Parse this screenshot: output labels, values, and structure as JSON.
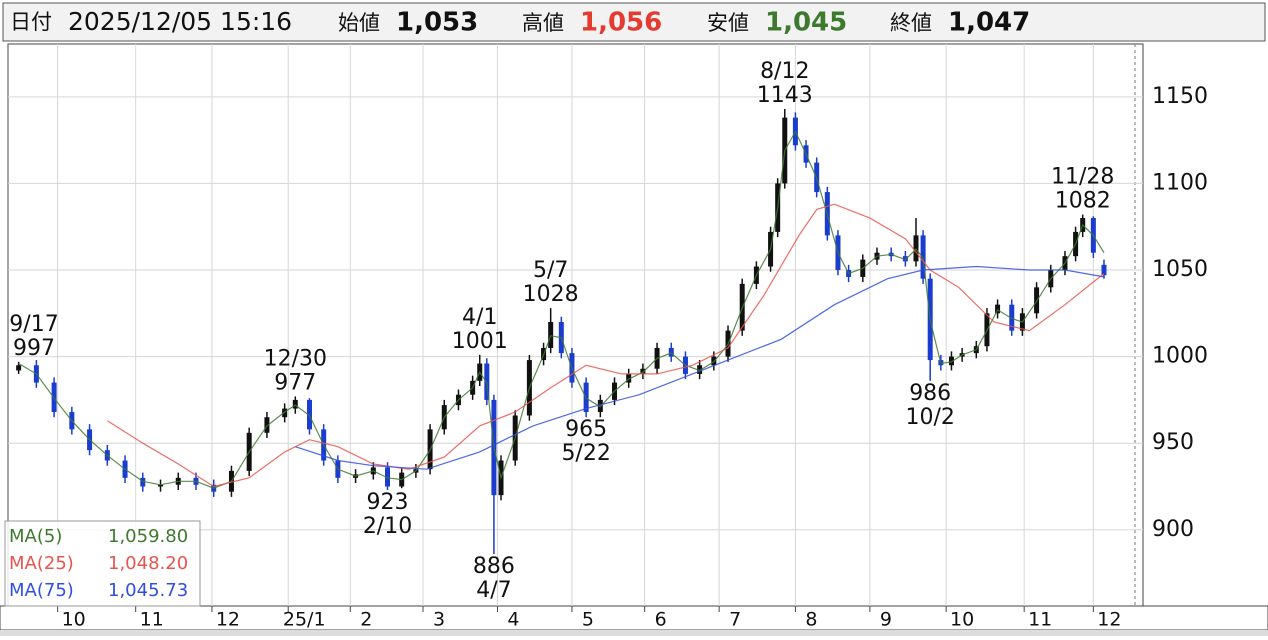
{
  "header": {
    "date_label": "日付",
    "datetime": "2025/12/05 15:16",
    "open_label": "始値",
    "open": {
      "value": 1053,
      "label": "1,053"
    },
    "high_label": "高値",
    "high": {
      "value": 1056,
      "label": "1,056"
    },
    "low_label": "安値",
    "low": {
      "value": 1045,
      "label": "1,045"
    },
    "close_label": "終値",
    "close": {
      "value": 1047,
      "label": "1,047"
    }
  },
  "chart_data": {
    "type": "candlestick",
    "up_color": "#111111",
    "down_color": "#1a3ccf",
    "grid": true,
    "xlim": [
      -3,
      317
    ],
    "ylim": [
      856,
      1180.5
    ],
    "yticks": [
      900,
      950,
      1000,
      1050,
      1100,
      1150
    ],
    "xticks": [
      {
        "value": 11,
        "label": "10"
      },
      {
        "value": 33,
        "label": "11"
      },
      {
        "value": 54.5,
        "label": "12"
      },
      {
        "value": 76,
        "label": "25/1"
      },
      {
        "value": 93.5,
        "label": "2"
      },
      {
        "value": 114,
        "label": "3"
      },
      {
        "value": 135,
        "label": "4"
      },
      {
        "value": 156,
        "label": "5"
      },
      {
        "value": 176.5,
        "label": "6"
      },
      {
        "value": 197.5,
        "label": "7"
      },
      {
        "value": 219,
        "label": "8"
      },
      {
        "value": 240,
        "label": "9"
      },
      {
        "value": 261.5,
        "label": "10"
      },
      {
        "value": 283.5,
        "label": "11"
      },
      {
        "value": 303,
        "label": "12"
      }
    ],
    "x": [
      0,
      5,
      10,
      15,
      20,
      25,
      30,
      35,
      40,
      45,
      50,
      55,
      60,
      65,
      70,
      75,
      78,
      82,
      86,
      90,
      95,
      100,
      104,
      108,
      112,
      116,
      120,
      124,
      128,
      130,
      132,
      134,
      136,
      140,
      144,
      148,
      150,
      153,
      156,
      160,
      164,
      168,
      172,
      176,
      180,
      184,
      188,
      192,
      196,
      200,
      204,
      208,
      212,
      214,
      216,
      219,
      222,
      225,
      228,
      231,
      234,
      238,
      242,
      246,
      250,
      253,
      255,
      257,
      260,
      263,
      266,
      270,
      273,
      276,
      280,
      283,
      287,
      291,
      295,
      298,
      300,
      303,
      306
    ],
    "open": [
      992,
      995,
      985,
      968,
      958,
      946,
      940,
      930,
      925,
      926,
      930,
      926,
      922,
      934,
      956,
      965,
      970,
      975,
      958,
      940,
      930,
      932,
      936,
      925,
      933,
      935,
      958,
      972,
      978,
      986,
      996,
      975,
      920,
      940,
      966,
      998,
      1005,
      1020,
      1002,
      985,
      968,
      975,
      985,
      990,
      993,
      1005,
      1000,
      990,
      995,
      1000,
      1015,
      1042,
      1052,
      1072,
      1100,
      1138,
      1122,
      1112,
      1095,
      1070,
      1050,
      1046,
      1056,
      1060,
      1058,
      1055,
      1070,
      1045,
      998,
      995,
      1000,
      1002,
      1006,
      1025,
      1030,
      1015,
      1025,
      1040,
      1050,
      1058,
      1072,
      1080,
      1053
    ],
    "high": [
      997,
      998,
      988,
      971,
      961,
      949,
      943,
      933,
      929,
      933,
      933,
      929,
      937,
      959,
      968,
      973,
      977,
      976,
      961,
      943,
      935,
      939,
      939,
      936,
      938,
      961,
      975,
      981,
      989,
      1001,
      999,
      978,
      943,
      969,
      1001,
      1008,
      1028,
      1023,
      1005,
      988,
      978,
      988,
      993,
      996,
      1008,
      1008,
      1003,
      998,
      1003,
      1018,
      1045,
      1055,
      1075,
      1103,
      1143,
      1141,
      1125,
      1115,
      1098,
      1073,
      1053,
      1059,
      1063,
      1063,
      1061,
      1080,
      1073,
      1048,
      1001,
      1003,
      1005,
      1009,
      1028,
      1033,
      1033,
      1028,
      1043,
      1053,
      1061,
      1075,
      1082,
      1081,
      1056
    ],
    "low": [
      990,
      982,
      965,
      955,
      943,
      937,
      927,
      922,
      922,
      923,
      923,
      919,
      919,
      931,
      953,
      962,
      967,
      955,
      937,
      927,
      927,
      929,
      923,
      924,
      930,
      932,
      955,
      969,
      975,
      983,
      972,
      886,
      917,
      937,
      963,
      995,
      1002,
      999,
      982,
      965,
      965,
      972,
      982,
      987,
      990,
      997,
      987,
      987,
      992,
      997,
      1012,
      1039,
      1049,
      1069,
      1097,
      1119,
      1109,
      1092,
      1067,
      1047,
      1043,
      1043,
      1053,
      1055,
      1052,
      1052,
      1042,
      986,
      992,
      992,
      997,
      999,
      1003,
      1022,
      1012,
      1012,
      1022,
      1037,
      1047,
      1055,
      1069,
      1057,
      1045
    ],
    "close": [
      995,
      985,
      968,
      958,
      946,
      940,
      930,
      925,
      926,
      930,
      926,
      922,
      934,
      956,
      965,
      970,
      975,
      958,
      940,
      930,
      932,
      936,
      925,
      933,
      935,
      958,
      972,
      978,
      986,
      996,
      975,
      920,
      940,
      966,
      998,
      1005,
      1020,
      1002,
      985,
      968,
      975,
      985,
      990,
      993,
      1005,
      1000,
      990,
      995,
      1000,
      1015,
      1042,
      1052,
      1072,
      1100,
      1138,
      1122,
      1112,
      1095,
      1070,
      1050,
      1046,
      1056,
      1060,
      1058,
      1055,
      1070,
      1045,
      998,
      995,
      1000,
      1002,
      1006,
      1025,
      1030,
      1015,
      1025,
      1040,
      1050,
      1058,
      1072,
      1080,
      1060,
      1047
    ],
    "series": [
      {
        "name": "MA(5)",
        "color": "#3d7a2e",
        "legend_value": {
          "value": 1059.8,
          "label": "1,059.80"
        },
        "x": [
          0,
          5,
          10,
          15,
          20,
          25,
          30,
          35,
          40,
          45,
          50,
          55,
          60,
          65,
          70,
          75,
          78,
          82,
          86,
          90,
          95,
          100,
          104,
          108,
          112,
          116,
          120,
          124,
          128,
          130,
          132,
          134,
          136,
          140,
          144,
          148,
          150,
          153,
          156,
          160,
          164,
          168,
          172,
          176,
          180,
          184,
          188,
          192,
          196,
          200,
          204,
          208,
          212,
          214,
          216,
          219,
          222,
          225,
          228,
          231,
          234,
          238,
          242,
          246,
          250,
          253,
          255,
          257,
          260,
          263,
          266,
          270,
          273,
          276,
          280,
          283,
          287,
          291,
          295,
          298,
          300,
          303,
          306
        ],
        "values": [
          996,
          990,
          976,
          963,
          952,
          943,
          935,
          928,
          926,
          928,
          928,
          924,
          928,
          945,
          960,
          968,
          972,
          966,
          949,
          935,
          931,
          934,
          930,
          929,
          934,
          946,
          965,
          975,
          982,
          991,
          985,
          948,
          930,
          953,
          982,
          1001,
          1012,
          1011,
          993,
          976,
          971,
          980,
          987,
          991,
          999,
          1002,
          995,
          992,
          997,
          1007,
          1028,
          1047,
          1062,
          1086,
          1119,
          1130,
          1117,
          1103,
          1082,
          1060,
          1048,
          1051,
          1058,
          1059,
          1056,
          1062,
          1057,
          1021,
          996,
          997,
          1001,
          1004,
          1015,
          1027,
          1022,
          1020,
          1032,
          1045,
          1054,
          1065,
          1076,
          1070,
          1060
        ]
      },
      {
        "name": "MA(25)",
        "color": "#e8554e",
        "legend_value": {
          "value": 1048.2,
          "label": "1,048.20"
        },
        "x": [
          25,
          35,
          45,
          55,
          65,
          75,
          82,
          90,
          100,
          110,
          120,
          130,
          140,
          150,
          160,
          170,
          180,
          190,
          200,
          210,
          220,
          225,
          230,
          240,
          250,
          257,
          265,
          275,
          285,
          295,
          306
        ],
        "values": [
          963,
          950,
          938,
          925,
          930,
          945,
          952,
          948,
          938,
          935,
          942,
          960,
          968,
          982,
          995,
          990,
          990,
          995,
          1005,
          1035,
          1070,
          1085,
          1088,
          1080,
          1068,
          1050,
          1040,
          1020,
          1015,
          1030,
          1048
        ]
      },
      {
        "name": "MA(75)",
        "color": "#2f4fe0",
        "legend_value": {
          "value": 1045.73,
          "label": "1,045.73"
        },
        "x": [
          78,
          90,
          100,
          115,
          130,
          145,
          160,
          175,
          190,
          200,
          215,
          230,
          245,
          255,
          270,
          285,
          295,
          306
        ],
        "values": [
          948,
          940,
          937,
          935,
          945,
          960,
          970,
          978,
          990,
          998,
          1010,
          1030,
          1045,
          1050,
          1052,
          1050,
          1050,
          1046
        ]
      }
    ],
    "annotations": [
      {
        "x": 0,
        "date": "9/17",
        "value": 997,
        "side": "above"
      },
      {
        "x": 78,
        "date": "12/30",
        "value": 977,
        "side": "above"
      },
      {
        "x": 104,
        "date": "2/10",
        "value": 923,
        "side": "below"
      },
      {
        "x": 130,
        "date": "4/1",
        "value": 1001,
        "side": "above"
      },
      {
        "x": 134,
        "date": "4/7",
        "value": 886,
        "side": "below"
      },
      {
        "x": 150,
        "date": "5/7",
        "value": 1028,
        "side": "above"
      },
      {
        "x": 160,
        "date": "5/22",
        "value": 965,
        "side": "below"
      },
      {
        "x": 216,
        "date": "8/12",
        "value": 1143,
        "side": "above"
      },
      {
        "x": 257,
        "date": "10/2",
        "value": 986,
        "side": "below"
      },
      {
        "x": 300,
        "date": "11/28",
        "value": 1082,
        "side": "above"
      }
    ]
  }
}
